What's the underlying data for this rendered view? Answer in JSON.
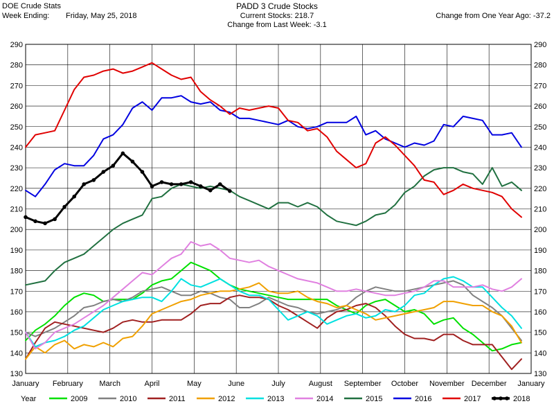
{
  "header": {
    "left_title": "DOE Crude Stats",
    "week_label": "Week Ending:",
    "week_value": "Friday, May 25, 2018",
    "center_title": "PADD 3 Crude Stocks",
    "current_stocks": "Current Stocks: 218.7",
    "change_week": "Change from Last Week:  -3.1",
    "change_year": "Change from One Year Ago: -37.2"
  },
  "chart_data": {
    "type": "line",
    "title": "PADD 3 Crude Stocks",
    "ylim": [
      130,
      290
    ],
    "yticks": [
      130,
      140,
      150,
      160,
      170,
      180,
      190,
      200,
      210,
      220,
      230,
      240,
      250,
      260,
      270,
      280,
      290
    ],
    "xlim": [
      1,
      53
    ],
    "month_labels": [
      "January",
      "February",
      "March",
      "April",
      "May",
      "June",
      "July",
      "August",
      "September",
      "October",
      "November",
      "December",
      "January"
    ],
    "legend_title": "Year",
    "legend_position": "bottom",
    "grid": true,
    "series": [
      {
        "name": "2009",
        "color": "#00e000",
        "width": 2,
        "values": [
          146,
          151,
          154,
          158,
          163,
          167,
          169,
          168,
          165,
          166,
          166,
          166,
          169,
          173,
          175,
          176,
          180,
          184,
          182,
          180,
          176,
          173,
          171,
          170,
          169,
          168,
          167,
          166,
          166,
          166,
          166,
          166,
          163,
          161,
          159,
          163,
          165,
          166,
          163,
          160,
          161,
          159,
          154,
          156,
          157,
          152,
          149,
          145,
          141,
          142,
          144,
          145
        ]
      },
      {
        "name": "2010",
        "color": "#808080",
        "width": 2,
        "values": [
          150,
          148,
          150,
          152,
          155,
          158,
          162,
          163,
          165,
          166,
          165,
          167,
          170,
          171,
          172,
          170,
          168,
          168,
          170,
          169,
          167,
          166,
          162,
          162,
          164,
          167,
          165,
          163,
          162,
          160,
          159,
          160,
          161,
          163,
          167,
          170,
          172,
          171,
          170,
          170,
          171,
          172,
          173,
          174,
          175,
          173,
          168,
          165,
          162,
          158,
          152,
          146
        ]
      },
      {
        "name": "2011",
        "color": "#a02020",
        "width": 2,
        "values": [
          137,
          145,
          152,
          155,
          154,
          153,
          152,
          151,
          150,
          152,
          155,
          156,
          155,
          155,
          156,
          156,
          156,
          159,
          163,
          164,
          164,
          167,
          168,
          167,
          167,
          166,
          163,
          161,
          158,
          155,
          152,
          157,
          160,
          161,
          163,
          164,
          162,
          158,
          153,
          149,
          147,
          147,
          146,
          149,
          149,
          146,
          144,
          144,
          144,
          138,
          132,
          137
        ]
      },
      {
        "name": "2012",
        "color": "#f0a000",
        "width": 2,
        "values": [
          137,
          143,
          140,
          144,
          146,
          142,
          144,
          143,
          145,
          143,
          147,
          148,
          153,
          159,
          161,
          163,
          165,
          166,
          168,
          169,
          170,
          170,
          171,
          172,
          174,
          170,
          169,
          169,
          170,
          167,
          165,
          164,
          162,
          163,
          161,
          159,
          156,
          157,
          158,
          159,
          160,
          161,
          162,
          165,
          165,
          164,
          163,
          163,
          160,
          158,
          153,
          145
        ]
      },
      {
        "name": "2013",
        "color": "#00e0e0",
        "width": 2,
        "values": [
          150,
          143,
          145,
          146,
          148,
          151,
          153,
          157,
          161,
          163,
          165,
          166,
          167,
          167,
          165,
          170,
          176,
          173,
          172,
          174,
          176,
          173,
          170,
          168,
          168,
          166,
          161,
          156,
          158,
          160,
          158,
          154,
          156,
          158,
          159,
          157,
          158,
          161,
          160,
          163,
          168,
          169,
          173,
          176,
          177,
          175,
          172,
          172,
          167,
          162,
          158,
          152
        ]
      },
      {
        "name": "2014",
        "color": "#e080e0",
        "width": 2,
        "values": [
          150,
          142,
          145,
          150,
          152,
          154,
          157,
          160,
          163,
          167,
          171,
          175,
          179,
          178,
          182,
          186,
          188,
          194,
          192,
          193,
          190,
          186,
          185,
          184,
          185,
          182,
          180,
          178,
          176,
          175,
          174,
          172,
          170,
          170,
          171,
          170,
          169,
          168,
          168,
          169,
          170,
          172,
          175,
          175,
          172,
          172,
          172,
          173,
          171,
          170,
          172,
          176
        ]
      },
      {
        "name": "2015",
        "color": "#207040",
        "width": 2,
        "values": [
          173,
          174,
          175,
          180,
          184,
          186,
          188,
          192,
          196,
          200,
          203,
          205,
          207,
          215,
          216,
          220,
          222,
          221,
          220,
          221,
          220,
          219,
          216,
          214,
          212,
          210,
          213,
          213,
          211,
          213,
          211,
          207,
          204,
          203,
          202,
          204,
          207,
          208,
          212,
          218,
          221,
          226,
          229,
          230,
          230,
          228,
          227,
          222,
          230,
          221,
          223,
          219
        ]
      },
      {
        "name": "2016",
        "color": "#0000e0",
        "width": 2,
        "values": [
          219,
          216,
          222,
          229,
          232,
          231,
          231,
          236,
          244,
          246,
          251,
          259,
          262,
          258,
          264,
          264,
          265,
          262,
          261,
          262,
          258,
          257,
          254,
          254,
          253,
          252,
          251,
          253,
          250,
          249,
          250,
          252,
          252,
          252,
          255,
          246,
          248,
          244,
          242,
          240,
          242,
          241,
          243,
          251,
          250,
          255,
          254,
          253,
          246,
          246,
          247,
          240
        ]
      },
      {
        "name": "2017",
        "color": "#e00000",
        "width": 2,
        "values": [
          240,
          246,
          247,
          248,
          258,
          268,
          274,
          275,
          277,
          278,
          276,
          277,
          279,
          281,
          278,
          275,
          273,
          274,
          267,
          263,
          260,
          256,
          259,
          258,
          259,
          260,
          259,
          253,
          252,
          248,
          249,
          245,
          238,
          234,
          230,
          232,
          242,
          245,
          241,
          236,
          231,
          224,
          223,
          217,
          219,
          222,
          220,
          219,
          218,
          216,
          210,
          206
        ]
      },
      {
        "name": "2018",
        "color": "#000000",
        "width": 3,
        "markers": true,
        "values": [
          206,
          204,
          203,
          205,
          211,
          216,
          222,
          224,
          228,
          231,
          237,
          233,
          228,
          221,
          223,
          222,
          222,
          223,
          221,
          219,
          222,
          218.7
        ]
      }
    ]
  }
}
